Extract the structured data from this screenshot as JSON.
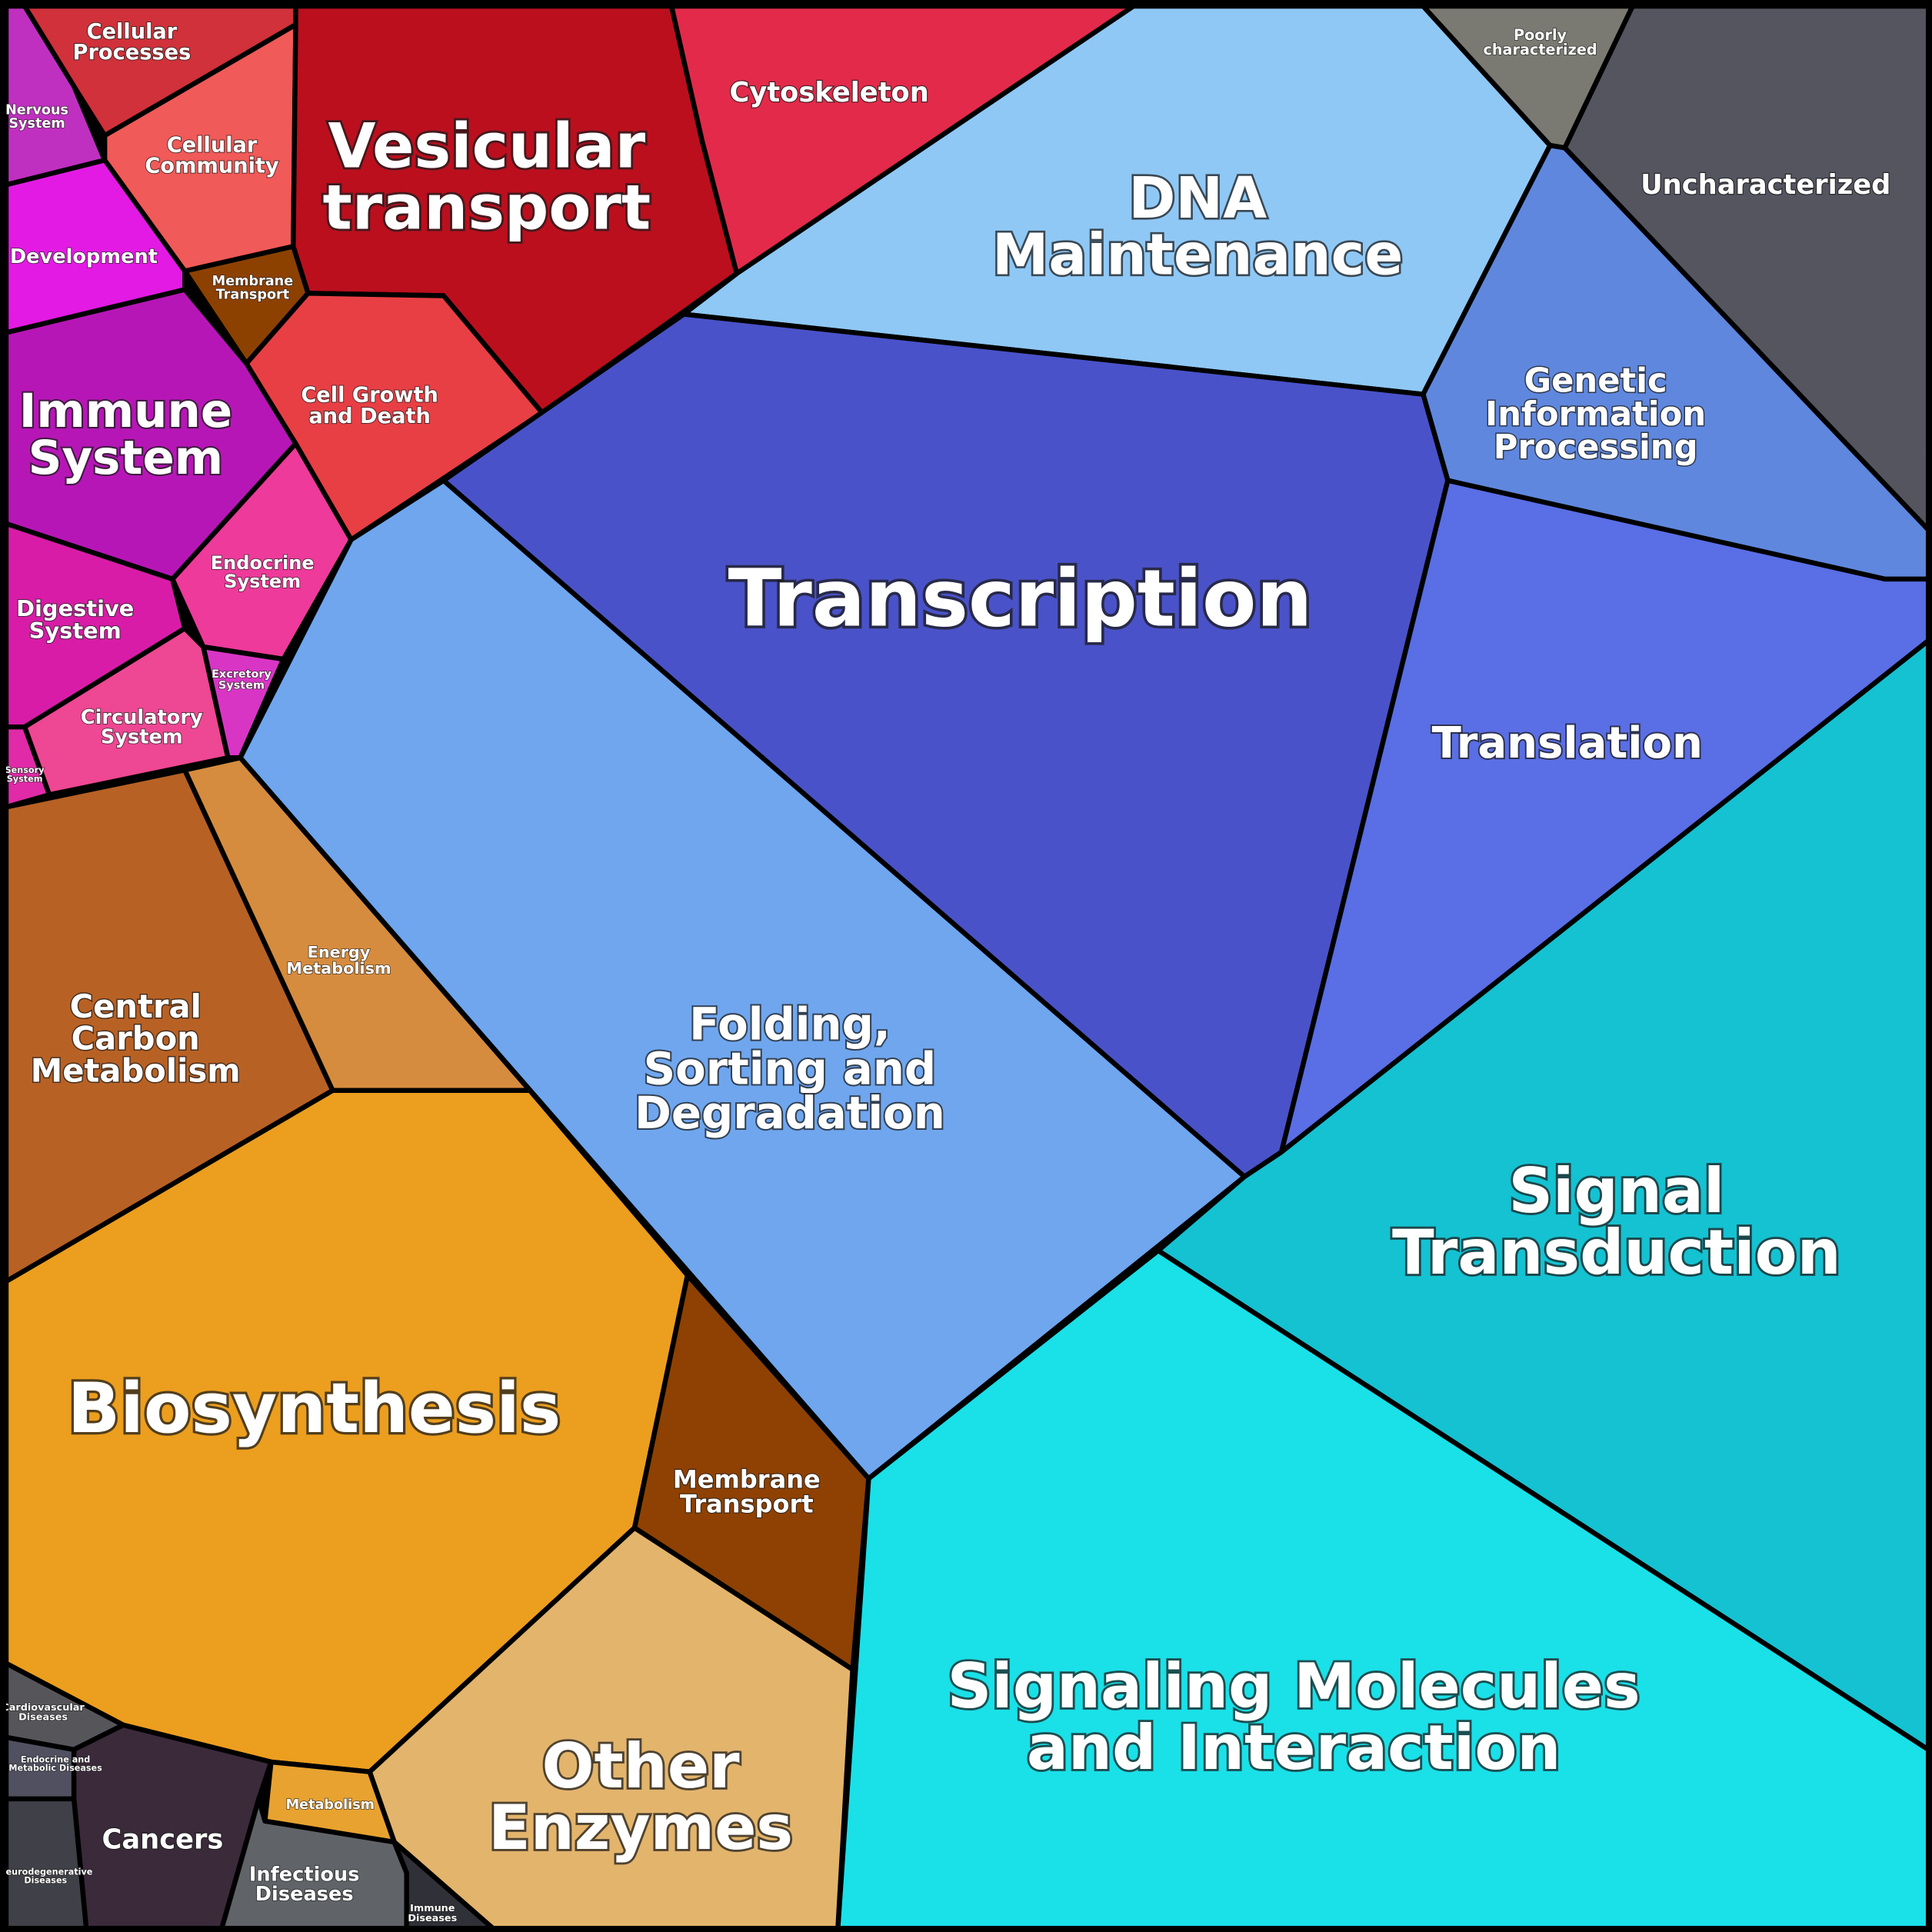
{
  "cells": [
    {
      "label": [
        "Cellular",
        "Processes"
      ],
      "color": "#d0313a"
    },
    {
      "label": [
        "Nervous",
        "System"
      ],
      "color": "#c030c0"
    },
    {
      "label": [
        "Cellular",
        "Community"
      ],
      "color": "#f05a58"
    },
    {
      "label": [
        "Vesicular",
        "transport"
      ],
      "color": "#bb0f1e"
    },
    {
      "label": [
        "Cytoskeleton"
      ],
      "color": "#e32a4a"
    },
    {
      "label": [
        "Membrane",
        "Transport"
      ],
      "color": "#8d4100"
    },
    {
      "label": [
        "Development"
      ],
      "color": "#e31ae3"
    },
    {
      "label": [
        "Cell Growth",
        "and Death"
      ],
      "color": "#e83f45"
    },
    {
      "label": [
        "Immune",
        "System"
      ],
      "color": "#b716b7"
    },
    {
      "label": [
        "Endocrine",
        "System"
      ],
      "color": "#ee3a9a"
    },
    {
      "label": [
        "Digestive",
        "System"
      ],
      "color": "#d81ca7"
    },
    {
      "label": [
        "Excretory",
        "System"
      ],
      "color": "#d935c5"
    },
    {
      "label": [
        "Circulatory",
        "System"
      ],
      "color": "#ee4793"
    },
    {
      "label": [
        "Sensory",
        "System"
      ],
      "color": "#e02aa8"
    },
    {
      "label": [
        "DNA",
        "Maintenance"
      ],
      "color": "#8fc8f5"
    },
    {
      "label": [
        "Poorly",
        "characterized"
      ],
      "color": "#7a7a72"
    },
    {
      "label": [
        "Uncharacterized"
      ],
      "color": "#555560"
    },
    {
      "label": [
        "Genetic",
        "Information",
        "Processing"
      ],
      "color": "#5f87de"
    },
    {
      "label": [
        "Transcription"
      ],
      "color": "#4a52c9"
    },
    {
      "label": [
        "Translation"
      ],
      "color": "#5a6ee5"
    },
    {
      "label": [
        "Folding,",
        "Sorting and",
        "Degradation"
      ],
      "color": "#6fa6ee"
    },
    {
      "label": [
        "Central",
        "Carbon",
        "Metabolism"
      ],
      "color": "#b86124"
    },
    {
      "label": [
        "Energy",
        "Metabolism"
      ],
      "color": "#d68c3e"
    },
    {
      "label": [
        "Biosynthesis"
      ],
      "color": "#ec9e1e"
    },
    {
      "label": [
        "Membrane",
        "Transport"
      ],
      "color": "#8e4102"
    },
    {
      "label": [
        "Signal",
        "Transduction"
      ],
      "color": "#14c2d2"
    },
    {
      "label": [
        "Signaling Molecules",
        "and Interaction"
      ],
      "color": "#1ae0e8"
    },
    {
      "label": [
        "Other",
        "Enzymes"
      ],
      "color": "#e3b46c"
    },
    {
      "label": [
        "Cardiovascular",
        "Diseases"
      ],
      "color": "#55555a"
    },
    {
      "label": [
        "Endocrine and",
        "Metabolic Diseases"
      ],
      "color": "#505060"
    },
    {
      "label": [
        "Cancers"
      ],
      "color": "#3a2a3a"
    },
    {
      "label": [
        "Metabolism"
      ],
      "color": "#e8a230"
    },
    {
      "label": [
        "Neurodegenerative",
        "Diseases"
      ],
      "color": "#404048"
    },
    {
      "label": [
        "Infectious",
        "Diseases"
      ],
      "color": "#606468"
    },
    {
      "label": [
        "Immune",
        "Diseases"
      ],
      "color": "#303038"
    }
  ]
}
